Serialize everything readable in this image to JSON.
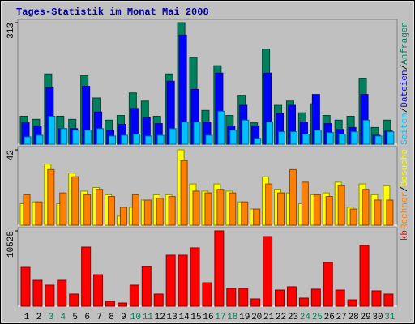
{
  "title": "Tages-Statistik im Monat Mai 2008",
  "legend_separator": "/",
  "chart_data": [
    {
      "type": "bar",
      "ylim": [
        0,
        313
      ],
      "yticks": [
        313
      ],
      "series": [
        {
          "name": "Anfragen",
          "color": "#00805c",
          "values": [
            72,
            64,
            181,
            72,
            64,
            177,
            119,
            62,
            74,
            132,
            111,
            72,
            181,
            313,
            224,
            87,
            202,
            74,
            126,
            55,
            245,
            100,
            111,
            81,
            104,
            74,
            62,
            72,
            170,
            43,
            62
          ]
        },
        {
          "name": "Dateien",
          "color": "#0000ff",
          "values": [
            55,
            47,
            145,
            40,
            40,
            149,
            83,
            36,
            51,
            92,
            68,
            53,
            162,
            281,
            141,
            57,
            183,
            47,
            100,
            47,
            183,
            79,
            100,
            57,
            128,
            53,
            38,
            43,
            128,
            23,
            34
          ]
        },
        {
          "name": "Seiten",
          "color": "#00c0ff",
          "values": [
            19,
            23,
            72,
            40,
            36,
            36,
            40,
            21,
            23,
            26,
            21,
            23,
            40,
            57,
            57,
            23,
            85,
            36,
            62,
            15,
            57,
            32,
            32,
            26,
            36,
            30,
            26,
            32,
            62,
            21,
            32
          ]
        }
      ]
    },
    {
      "type": "bar",
      "ylim": [
        0,
        42
      ],
      "yticks": [
        42
      ],
      "series": [
        {
          "name": "Besuche",
          "color": "#ffff00",
          "values": [
            12,
            13,
            34,
            12,
            29,
            19,
            21,
            17,
            5,
            10,
            14,
            17,
            17,
            42,
            23,
            19,
            23,
            19,
            13,
            9,
            27,
            20,
            18,
            12,
            17,
            18,
            24,
            10,
            23,
            17,
            22
          ]
        },
        {
          "name": "Rechner",
          "color": "#ff8000",
          "values": [
            17,
            13,
            31,
            18,
            27,
            17,
            20,
            16,
            10,
            17,
            14,
            15,
            16,
            36,
            19,
            18,
            20,
            18,
            13,
            9,
            23,
            18,
            31,
            24,
            17,
            16,
            22,
            9,
            20,
            14,
            14
          ]
        }
      ]
    },
    {
      "type": "bar",
      "ylim": [
        0,
        10525
      ],
      "yticks": [
        10525
      ],
      "categories": [
        "1",
        "2",
        "3",
        "4",
        "5",
        "6",
        "7",
        "8",
        "9",
        "10",
        "11",
        "12",
        "13",
        "14",
        "15",
        "16",
        "17",
        "18",
        "19",
        "20",
        "21",
        "22",
        "23",
        "24",
        "25",
        "26",
        "27",
        "28",
        "29",
        "30",
        "31"
      ],
      "category_colors": [
        "#000000",
        "#000000",
        "#00805c",
        "#00805c",
        "#000000",
        "#000000",
        "#000000",
        "#000000",
        "#000000",
        "#00805c",
        "#00805c",
        "#000000",
        "#000000",
        "#000000",
        "#000000",
        "#000000",
        "#00805c",
        "#00805c",
        "#000000",
        "#000000",
        "#000000",
        "#000000",
        "#000000",
        "#00805c",
        "#00805c",
        "#000000",
        "#000000",
        "#000000",
        "#000000",
        "#000000",
        "#00805c"
      ],
      "series": [
        {
          "name": "kb",
          "color": "#ff0000",
          "values": [
            5430,
            3620,
            2940,
            3620,
            1700,
            8260,
            4410,
            680,
            450,
            2940,
            5540,
            1700,
            7130,
            7130,
            8150,
            3280,
            10525,
            2490,
            2490,
            1020,
            9730,
            2260,
            2720,
            1130,
            2380,
            6110,
            2260,
            900,
            8490,
            2150,
            1700
          ]
        }
      ]
    }
  ]
}
